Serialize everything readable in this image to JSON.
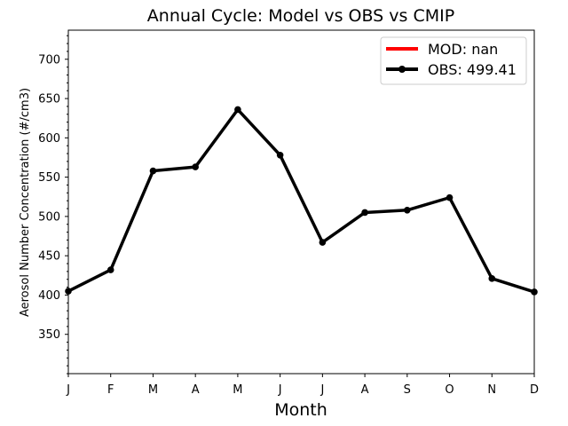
{
  "chart_data": {
    "type": "line",
    "title": "Annual Cycle: Model vs OBS vs CMIP",
    "xlabel": "Month",
    "ylabel": "Aerosol Number Concentration (#/cm3)",
    "categories": [
      "J",
      "F",
      "M",
      "A",
      "M",
      "J",
      "J",
      "A",
      "S",
      "O",
      "N",
      "D"
    ],
    "ylim": [
      300,
      737
    ],
    "yticks": [
      350,
      400,
      450,
      500,
      550,
      600,
      650,
      700
    ],
    "series": [
      {
        "name": "MOD: nan",
        "color": "#ff0000",
        "marker": "none",
        "values": [
          null,
          null,
          null,
          null,
          null,
          null,
          null,
          null,
          null,
          null,
          null,
          null
        ]
      },
      {
        "name": "OBS: 499.41",
        "color": "#000000",
        "marker": "circle",
        "values": [
          405,
          432,
          558,
          563,
          636,
          578,
          467,
          505,
          508,
          524,
          421,
          404
        ]
      }
    ],
    "legend_position": "top-right",
    "grid": false
  }
}
